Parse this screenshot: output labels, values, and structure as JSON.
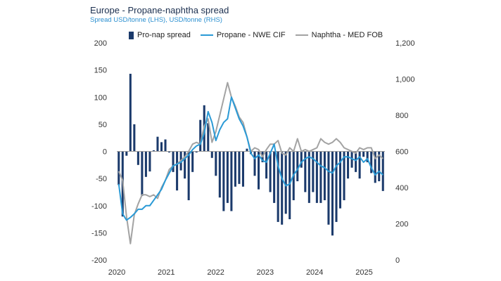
{
  "chart_data": {
    "type": "bar+line",
    "title": "Europe - Propane-naphtha spread",
    "subtitle": "Spread USD/tonne (LHS), USD/tonne (RHS)",
    "colors": {
      "bar": "#1b3a6b",
      "propane": "#2a9ad6",
      "naphtha": "#a3a3a3",
      "zero_line": "#999999"
    },
    "x_ticks": [
      "2020",
      "2021",
      "2022",
      "2023",
      "2024",
      "2025"
    ],
    "x_range": [
      2020.0,
      2025.42
    ],
    "y_left": {
      "ticks": [
        "200",
        "150",
        "100",
        "50",
        "0",
        "-50",
        "-100",
        "-150",
        "-200"
      ],
      "ylim": [
        -200,
        200
      ]
    },
    "y_right": {
      "ticks": [
        "1,200",
        "1,000",
        "800",
        "600",
        "400",
        "200",
        "0"
      ],
      "ylim": [
        0,
        1200
      ]
    },
    "legend": [
      "Pro-nap spread",
      "Propane - NWE CIF",
      "Naphtha - MED FOB"
    ],
    "series": [
      {
        "name": "Pro-nap spread",
        "type": "bar",
        "axis": "left",
        "values": [
          -62,
          -120,
          -8,
          143,
          50,
          -25,
          -82,
          -47,
          -37,
          2,
          27,
          17,
          22,
          -2,
          -38,
          -72,
          -35,
          -50,
          -90,
          -38,
          -2,
          58,
          85,
          52,
          -12,
          -45,
          -85,
          -110,
          -95,
          -110,
          -65,
          -60,
          -65,
          5,
          -5,
          -45,
          -70,
          -20,
          -50,
          -75,
          -95,
          -130,
          -135,
          -115,
          -125,
          -90,
          -55,
          -30,
          -75,
          -95,
          -75,
          -95,
          -95,
          -90,
          -135,
          -155,
          -130,
          -105,
          -90,
          -50,
          -30,
          -38,
          -50,
          -10,
          -20,
          -40,
          -58,
          -55,
          -73
        ]
      },
      {
        "name": "Propane - NWE CIF",
        "type": "line",
        "axis": "right",
        "values": [
          420,
          255,
          220,
          235,
          255,
          280,
          280,
          300,
          300,
          330,
          360,
          390,
          440,
          480,
          520,
          530,
          540,
          560,
          580,
          610,
          630,
          640,
          700,
          820,
          760,
          660,
          720,
          760,
          780,
          900,
          840,
          780,
          740,
          680,
          590,
          560,
          580,
          550,
          540,
          590,
          640,
          520,
          450,
          410,
          420,
          470,
          500,
          540,
          560,
          570,
          560,
          540,
          520,
          510,
          490,
          480,
          520,
          540,
          570,
          570,
          560,
          550,
          570,
          540,
          560,
          510,
          470,
          490,
          470
        ]
      },
      {
        "name": "Naphtha - MED FOB",
        "type": "line",
        "axis": "right",
        "values": [
          490,
          440,
          240,
          90,
          250,
          310,
          360,
          360,
          350,
          360,
          340,
          400,
          440,
          500,
          520,
          530,
          550,
          570,
          600,
          640,
          650,
          640,
          740,
          780,
          650,
          710,
          800,
          890,
          980,
          900,
          850,
          790,
          760,
          680,
          600,
          620,
          610,
          570,
          610,
          640,
          640,
          660,
          590,
          580,
          620,
          600,
          670,
          600,
          610,
          600,
          610,
          620,
          670,
          650,
          640,
          650,
          670,
          650,
          620,
          610,
          600,
          590,
          620,
          610,
          620,
          620,
          560,
          580,
          560
        ]
      }
    ]
  }
}
